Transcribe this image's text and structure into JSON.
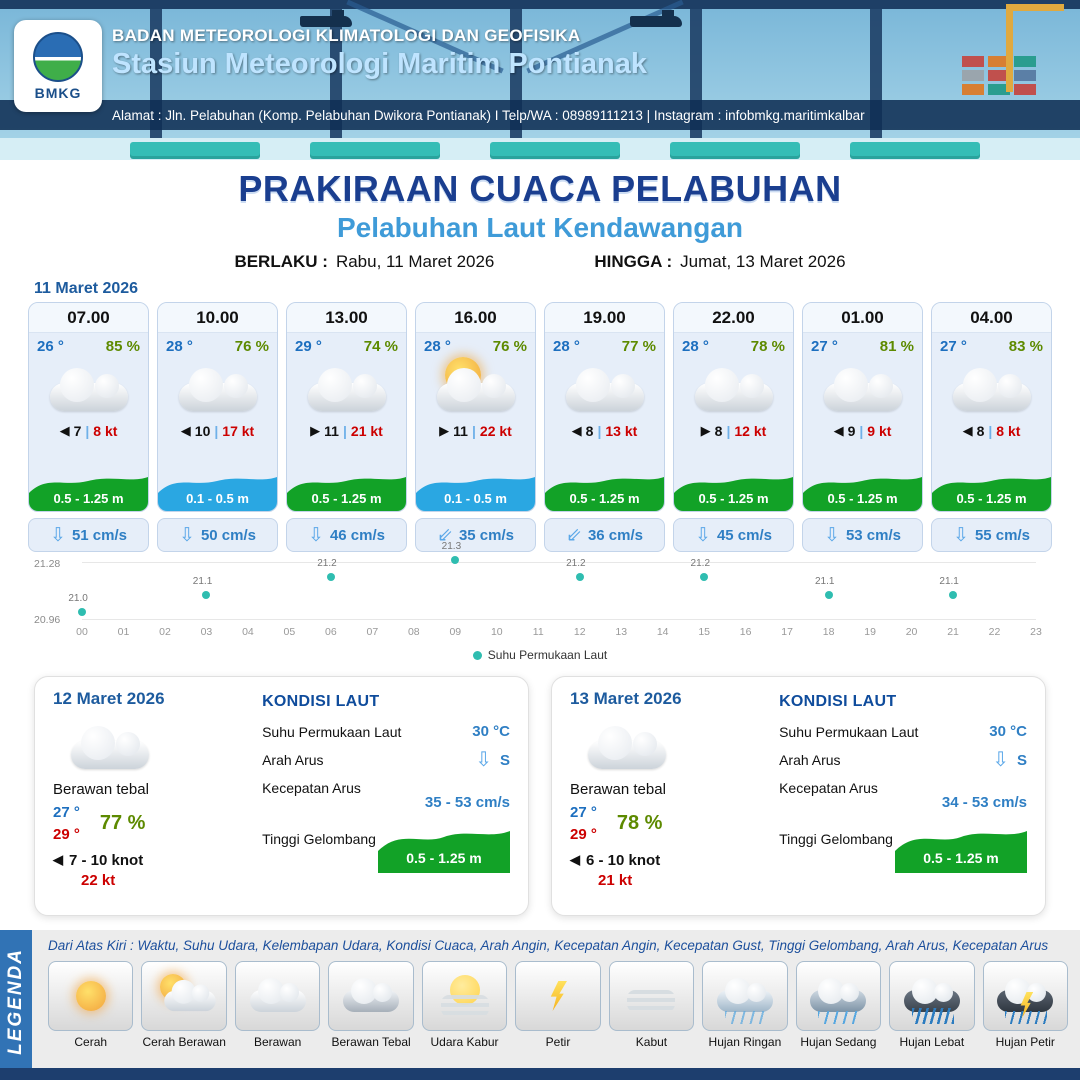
{
  "header": {
    "logo_text": "BMKG",
    "org_name": "BADAN METEOROLOGI KLIMATOLOGI DAN GEOFISIKA",
    "station_name": "Stasiun Meteorologi Maritim Pontianak",
    "address_line": "Alamat : Jln. Pelabuhan (Komp. Pelabuhan Dwikora Pontianak) I Telp/WA : 08989111213 | Instagram : infobmkg.maritimkalbar"
  },
  "title": {
    "main": "PRAKIRAAN CUACA PELABUHAN",
    "subtitle": "Pelabuhan Laut Kendawangan",
    "valid_from_label": "BERLAKU :",
    "valid_from": "Rabu, 11 Maret 2026",
    "valid_until_label": "HINGGA :",
    "valid_until": "Jumat, 13 Maret 2026"
  },
  "forecast": {
    "date": "11 Maret 2026",
    "cards": [
      {
        "time": "07.00",
        "temp": "26 °",
        "humidity": "85 %",
        "icon": "cloudy",
        "wind_arrow": "◀",
        "wind_speed": "7",
        "separator": "|",
        "gust": "8 kt",
        "wave_height": "0.5 - 1.25 m",
        "wave_variant": "green",
        "current_arrow": "⇩",
        "current_speed": "51 cm/s"
      },
      {
        "time": "10.00",
        "temp": "28 °",
        "humidity": "76 %",
        "icon": "cloudy",
        "wind_arrow": "◀",
        "wind_speed": "10",
        "separator": "|",
        "gust": "17 kt",
        "wave_height": "0.1 - 0.5 m",
        "wave_variant": "blue",
        "current_arrow": "⇩",
        "current_speed": "50 cm/s"
      },
      {
        "time": "13.00",
        "temp": "29 °",
        "humidity": "74 %",
        "icon": "cloudy",
        "wind_arrow": "▶",
        "wind_speed": "11",
        "separator": "|",
        "gust": "21 kt",
        "wave_height": "0.5 - 1.25 m",
        "wave_variant": "green",
        "current_arrow": "⇩",
        "current_speed": "46 cm/s"
      },
      {
        "time": "16.00",
        "temp": "28 °",
        "humidity": "76 %",
        "icon": "cloudy-sun",
        "wind_arrow": "▶",
        "wind_speed": "11",
        "separator": "|",
        "gust": "22 kt",
        "wave_height": "0.1 - 0.5 m",
        "wave_variant": "blue",
        "current_arrow": "⇙",
        "current_speed": "35 cm/s"
      },
      {
        "time": "19.00",
        "temp": "28 °",
        "humidity": "77 %",
        "icon": "cloudy",
        "wind_arrow": "◀",
        "wind_speed": "8",
        "separator": "|",
        "gust": "13 kt",
        "wave_height": "0.5 - 1.25 m",
        "wave_variant": "green",
        "current_arrow": "⇙",
        "current_speed": "36 cm/s"
      },
      {
        "time": "22.00",
        "temp": "28 °",
        "humidity": "78 %",
        "icon": "cloudy",
        "wind_arrow": "▶",
        "wind_speed": "8",
        "separator": "|",
        "gust": "12 kt",
        "wave_height": "0.5 - 1.25 m",
        "wave_variant": "green",
        "current_arrow": "⇩",
        "current_speed": "45 cm/s"
      },
      {
        "time": "01.00",
        "temp": "27 °",
        "humidity": "81 %",
        "icon": "cloudy",
        "wind_arrow": "◀",
        "wind_speed": "9",
        "separator": "|",
        "gust": "9 kt",
        "wave_height": "0.5 - 1.25 m",
        "wave_variant": "green",
        "current_arrow": "⇩",
        "current_speed": "53 cm/s"
      },
      {
        "time": "04.00",
        "temp": "27 °",
        "humidity": "83 %",
        "icon": "cloudy",
        "wind_arrow": "◀",
        "wind_speed": "8",
        "separator": "|",
        "gust": "8 kt",
        "wave_height": "0.5 - 1.25 m",
        "wave_variant": "green",
        "current_arrow": "⇩",
        "current_speed": "55 cm/s"
      }
    ]
  },
  "chart_data": {
    "type": "scatter",
    "title": "",
    "series_name": "Suhu Permukaan Laut",
    "x": [
      0,
      3,
      6,
      9,
      12,
      15,
      18,
      21
    ],
    "values": [
      21.0,
      21.1,
      21.2,
      21.3,
      21.2,
      21.2,
      21.1,
      21.1
    ],
    "point_labels": [
      "21.0",
      "21.1",
      "21.2",
      "21.3",
      "21.2",
      "21.2",
      "21.1",
      "21.1"
    ],
    "x_labels": [
      "00",
      "01",
      "02",
      "03",
      "04",
      "05",
      "06",
      "07",
      "08",
      "09",
      "10",
      "11",
      "12",
      "13",
      "14",
      "15",
      "16",
      "17",
      "18",
      "19",
      "20",
      "21",
      "22",
      "23"
    ],
    "xlim": [
      0,
      23
    ],
    "ylim": [
      20.96,
      21.28
    ],
    "y_axis_labels": {
      "max": "21.28",
      "min": "20.96"
    },
    "legend": "Suhu Permukaan Laut",
    "legend_position": "bottom-center",
    "grid": false,
    "dot_color": "#2fbdb0"
  },
  "day_cards": [
    {
      "date": "12 Maret 2026",
      "icon": "cloudy",
      "condition": "Berawan tebal",
      "temp_min": "27 °",
      "temp_max": "29 °",
      "humidity": "77 %",
      "wind_arrow": "◀",
      "wind_range": "7  - 10 knot",
      "gust": "22 kt",
      "sea_title": "KONDISI LAUT",
      "sst_label": "Suhu Permukaan Laut",
      "sst_value": "30 °C",
      "current_dir_label": "Arah Arus",
      "current_dir_arrow": "⇩",
      "current_dir_value": "S",
      "current_speed_label": "Kecepatan Arus",
      "current_speed_value": "35 - 53 cm/s",
      "wave_label": "Tinggi Gelombang",
      "wave_value": "0.5 - 1.25 m"
    },
    {
      "date": "13 Maret 2026",
      "icon": "cloudy",
      "condition": "Berawan tebal",
      "temp_min": "27 °",
      "temp_max": "29 °",
      "humidity": "78 %",
      "wind_arrow": "◀",
      "wind_range": "6  - 10 knot",
      "gust": "21 kt",
      "sea_title": "KONDISI LAUT",
      "sst_label": "Suhu Permukaan Laut",
      "sst_value": "30 °C",
      "current_dir_label": "Arah Arus",
      "current_dir_arrow": "⇩",
      "current_dir_value": "S",
      "current_speed_label": "Kecepatan Arus",
      "current_speed_value": "34 - 53 cm/s",
      "wave_label": "Tinggi Gelombang",
      "wave_value": "0.5 - 1.25 m"
    }
  ],
  "legend": {
    "title": "LEGENDA",
    "note": "Dari Atas Kiri : Waktu, Suhu Udara, Kelembapan Udara, Kondisi Cuaca, Arah Angin, Kecepatan Angin, Kecepatan Gust, Tinggi Gelombang, Arah Arus, Kecepatan Arus",
    "items": [
      {
        "label": "Cerah",
        "icon": "sun"
      },
      {
        "label": "Cerah Berawan",
        "icon": "sun-cloud"
      },
      {
        "label": "Berawan",
        "icon": "cloud"
      },
      {
        "label": "Berawan Tebal",
        "icon": "cloud-thick"
      },
      {
        "label": "Udara Kabur",
        "icon": "haze"
      },
      {
        "label": "Petir",
        "icon": "lightning"
      },
      {
        "label": "Kabut",
        "icon": "fog"
      },
      {
        "label": "Hujan Ringan",
        "icon": "rain-light"
      },
      {
        "label": "Hujan Sedang",
        "icon": "rain-medium"
      },
      {
        "label": "Hujan Lebat",
        "icon": "rain-heavy"
      },
      {
        "label": "Hujan Petir",
        "icon": "thunderstorm"
      }
    ]
  },
  "colors": {
    "navy": "#1a3e8f",
    "subtitle_blue": "#3f9bd8",
    "wave_green": "#12a227",
    "wave_blue": "#2aa7e2",
    "alert_red": "#cc0000",
    "humidity_green": "#5d8a00",
    "value_blue": "#2f7fc4",
    "sst_dot": "#2fbdb0"
  }
}
